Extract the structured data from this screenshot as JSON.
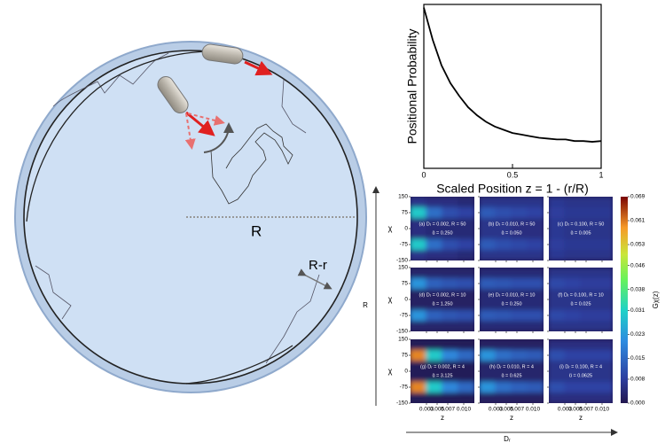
{
  "diagram": {
    "labels": [
      "R",
      "R-r"
    ]
  },
  "chart_data": [
    {
      "type": "line",
      "ylabel": "Positional Probability",
      "xlabel": "Scaled Position z = 1 - (r/R)",
      "x": [
        0,
        0.05,
        0.1,
        0.15,
        0.2,
        0.25,
        0.3,
        0.35,
        0.4,
        0.45,
        0.5,
        0.55,
        0.6,
        0.65,
        0.7,
        0.75,
        0.8,
        0.85,
        0.9,
        0.95,
        1
      ],
      "values": [
        1.0,
        0.8,
        0.64,
        0.53,
        0.45,
        0.38,
        0.33,
        0.29,
        0.26,
        0.24,
        0.22,
        0.21,
        0.2,
        0.19,
        0.185,
        0.18,
        0.18,
        0.17,
        0.17,
        0.165,
        0.17
      ],
      "color": "#000000",
      "xlim": [
        0,
        1
      ],
      "ylim": [
        0,
        1.02
      ],
      "xticks": [
        0,
        0.5,
        1
      ]
    },
    {
      "type": "heatmap",
      "xlabel": "z",
      "ylabel": "χ",
      "row_axis_label": "R",
      "col_axis_label": "Dᵣ",
      "xlim": [
        0,
        0.012
      ],
      "xticks": [
        0.003,
        0.005,
        0.007,
        {
          "value": 0.01,
          "label": "0.010"
        }
      ],
      "ylim": [
        -150,
        150
      ],
      "yticks": [
        150,
        75,
        0,
        -75,
        -150
      ],
      "colorbar_label": "Gχ(z)",
      "clim": [
        0,
        0.069
      ],
      "cticks": [
        {
          "value": 0,
          "label": "0.000"
        },
        0.008,
        0.015,
        0.023,
        0.031,
        0.038,
        0.046,
        0.053,
        0.061,
        0.069
      ],
      "panels": [
        {
          "label": "(a) Dᵣ = 0.002, R = 50",
          "u": "ũ = 0.250",
          "values": [
            [
              0.006,
              0.005,
              0.005,
              0.004
            ],
            [
              0.03,
              0.016,
              0.011,
              0.009
            ],
            [
              0.005,
              0.004,
              0.004,
              0.004
            ],
            [
              0.005,
              0.004,
              0.004,
              0.004
            ],
            [
              0.03,
              0.016,
              0.011,
              0.009
            ],
            [
              0.006,
              0.005,
              0.005,
              0.004
            ]
          ]
        },
        {
          "label": "(b) Dᵣ = 0.010, R = 50",
          "u": "ũ = 0.050",
          "values": [
            [
              0.006,
              0.006,
              0.006,
              0.006
            ],
            [
              0.013,
              0.011,
              0.01,
              0.009
            ],
            [
              0.006,
              0.006,
              0.005,
              0.005
            ],
            [
              0.006,
              0.006,
              0.005,
              0.005
            ],
            [
              0.013,
              0.011,
              0.01,
              0.009
            ],
            [
              0.006,
              0.006,
              0.006,
              0.006
            ]
          ]
        },
        {
          "label": "(c) Dᵣ = 0.100, R = 50",
          "u": "ũ = 0.005",
          "values": [
            [
              0.007,
              0.006,
              0.006,
              0.006
            ],
            [
              0.008,
              0.007,
              0.007,
              0.007
            ],
            [
              0.007,
              0.006,
              0.006,
              0.006
            ],
            [
              0.007,
              0.006,
              0.006,
              0.006
            ],
            [
              0.008,
              0.007,
              0.007,
              0.007
            ],
            [
              0.007,
              0.006,
              0.006,
              0.006
            ]
          ]
        },
        {
          "label": "(d) Dᵣ = 0.002, R = 10",
          "u": "ũ = 1.250",
          "values": [
            [
              0.003,
              0.003,
              0.003,
              0.003
            ],
            [
              0.022,
              0.014,
              0.012,
              0.011
            ],
            [
              0.002,
              0.002,
              0.002,
              0.002
            ],
            [
              0.002,
              0.002,
              0.002,
              0.002
            ],
            [
              0.022,
              0.014,
              0.012,
              0.011
            ],
            [
              0.003,
              0.003,
              0.003,
              0.003
            ]
          ]
        },
        {
          "label": "(e) Dᵣ = 0.010, R = 10",
          "u": "ũ = 0.250",
          "values": [
            [
              0.004,
              0.004,
              0.004,
              0.004
            ],
            [
              0.013,
              0.012,
              0.011,
              0.011
            ],
            [
              0.004,
              0.004,
              0.004,
              0.004
            ],
            [
              0.004,
              0.004,
              0.004,
              0.004
            ],
            [
              0.013,
              0.012,
              0.011,
              0.011
            ],
            [
              0.004,
              0.004,
              0.004,
              0.004
            ]
          ]
        },
        {
          "label": "(f) Dᵣ = 0.100, R = 10",
          "u": "ũ = 0.025",
          "values": [
            [
              0.006,
              0.006,
              0.006,
              0.006
            ],
            [
              0.01,
              0.009,
              0.008,
              0.008
            ],
            [
              0.006,
              0.006,
              0.006,
              0.006
            ],
            [
              0.006,
              0.006,
              0.006,
              0.006
            ],
            [
              0.01,
              0.009,
              0.008,
              0.008
            ],
            [
              0.006,
              0.006,
              0.006,
              0.006
            ]
          ]
        },
        {
          "label": "(g) Dᵣ = 0.002, R = 4",
          "u": "ũ = 3.125",
          "values": [
            [
              0.001,
              0.001,
              0.001,
              0.001
            ],
            [
              0.06,
              0.03,
              0.02,
              0.015
            ],
            [
              0.001,
              0.001,
              0.001,
              0.001
            ],
            [
              0.001,
              0.001,
              0.001,
              0.001
            ],
            [
              0.06,
              0.03,
              0.02,
              0.015
            ],
            [
              0.001,
              0.001,
              0.001,
              0.001
            ]
          ]
        },
        {
          "label": "(h) Dᵣ = 0.010, R = 4",
          "u": "ũ = 0.625",
          "values": [
            [
              0.002,
              0.002,
              0.002,
              0.002
            ],
            [
              0.022,
              0.016,
              0.014,
              0.013
            ],
            [
              0.003,
              0.003,
              0.003,
              0.003
            ],
            [
              0.003,
              0.003,
              0.003,
              0.003
            ],
            [
              0.022,
              0.016,
              0.014,
              0.013
            ],
            [
              0.002,
              0.002,
              0.002,
              0.002
            ]
          ]
        },
        {
          "label": "(i) Dᵣ = 0.100, R = 4",
          "u": "ũ = 0.0625",
          "values": [
            [
              0.005,
              0.005,
              0.005,
              0.005
            ],
            [
              0.011,
              0.009,
              0.009,
              0.009
            ],
            [
              0.006,
              0.006,
              0.006,
              0.006
            ],
            [
              0.006,
              0.006,
              0.006,
              0.006
            ],
            [
              0.011,
              0.009,
              0.009,
              0.009
            ],
            [
              0.005,
              0.005,
              0.005,
              0.005
            ]
          ]
        }
      ]
    }
  ]
}
